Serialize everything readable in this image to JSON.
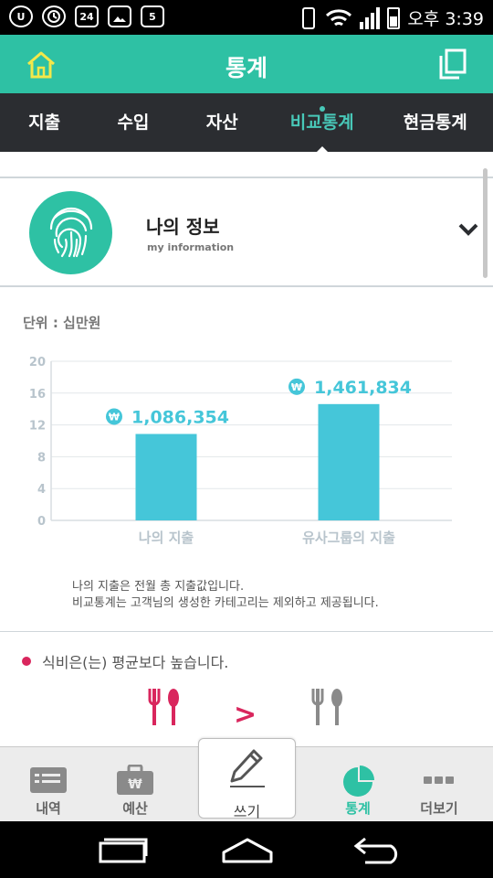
{
  "status_bar": {
    "time": "오후 3:39",
    "calendar_day": "5",
    "temperature_badge": "24"
  },
  "header": {
    "title": "통계"
  },
  "tabs": [
    {
      "label": "지출",
      "active": false
    },
    {
      "label": "수입",
      "active": false
    },
    {
      "label": "자산",
      "active": false
    },
    {
      "label": "비교통계",
      "active": true
    },
    {
      "label": "현금통계",
      "active": false
    }
  ],
  "my_info": {
    "title": "나의 정보",
    "subtitle": "my information"
  },
  "unit_label": "단위 : 십만원",
  "chart_data": {
    "type": "bar",
    "categories": [
      "나의 지출",
      "유사그룹의 지출"
    ],
    "values": [
      10.86354,
      14.61834
    ],
    "value_labels": [
      "1,086,354",
      "1,461,834"
    ],
    "currency_symbol": "₩",
    "yticks": [
      "0",
      "4",
      "8",
      "12",
      "16",
      "20"
    ],
    "ylim": [
      0,
      20
    ],
    "grid": true,
    "bar_color": "#45c6d9"
  },
  "notes": [
    "나의 지출은 전월 총 지출값입니다.",
    "비교통계는 고객님의 생성한 카테고리는 제외하고 제공됩니다."
  ],
  "comparison": {
    "text": "식비은(는) 평균보다 높습니다.",
    "operator": ">",
    "accent_color": "#d9265d"
  },
  "bottom_nav": [
    {
      "label": "내역",
      "icon": "card-icon"
    },
    {
      "label": "예산",
      "icon": "wallet-icon"
    },
    {
      "label": "쓰기",
      "icon": "pen-icon"
    },
    {
      "label": "통계",
      "icon": "pie-chart-icon",
      "active": true
    },
    {
      "label": "더보기",
      "icon": "more-icon"
    }
  ],
  "colors": {
    "primary": "#2ec1a4",
    "tab_bar": "#2b2d31",
    "tab_active": "#48c8b8"
  }
}
